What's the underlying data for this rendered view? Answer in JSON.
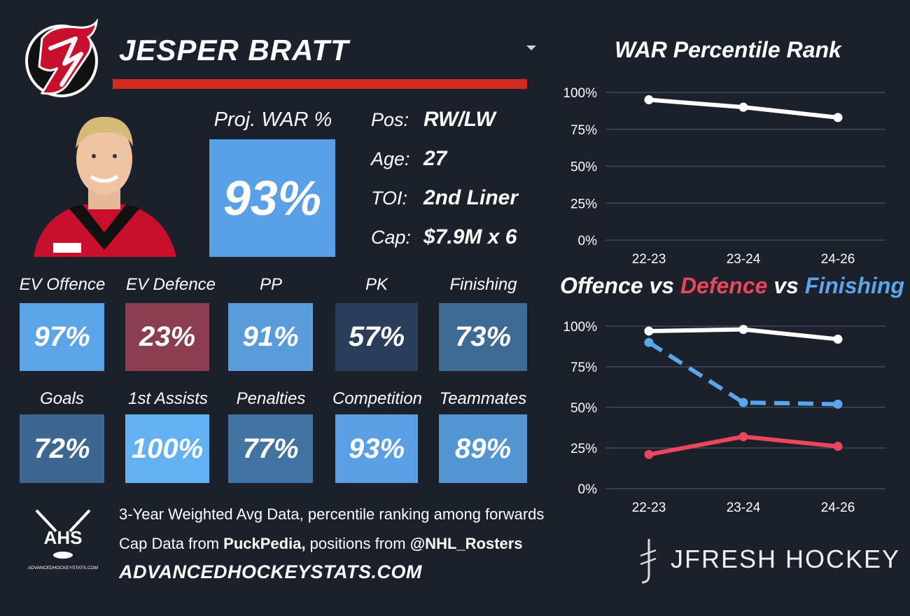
{
  "header": {
    "player_name": "JESPER BRATT",
    "team_logo_icon": "new-jersey-devils-logo-icon",
    "dropdown_icon": "caret-down-icon",
    "accent_color": "#d42b25"
  },
  "projection": {
    "label": "Proj. WAR %",
    "value": "93%",
    "color": "#5aa0e6"
  },
  "info": {
    "pos_label": "Pos:",
    "pos_value": "RW/LW",
    "age_label": "Age:",
    "age_value": "27",
    "toi_label": "TOI:",
    "toi_value": "2nd Liner",
    "cap_label": "Cap:",
    "cap_value": "$7.9M x 6"
  },
  "tiles": [
    {
      "label": "EV Offence",
      "value": "97%",
      "color": "#5aa4e7"
    },
    {
      "label": "EV Defence",
      "value": "23%",
      "color": "#8b3d52"
    },
    {
      "label": "PP",
      "value": "91%",
      "color": "#5a9bd9"
    },
    {
      "label": "PK",
      "value": "57%",
      "color": "#2a3e5a"
    },
    {
      "label": "Finishing",
      "value": "73%",
      "color": "#3f6a93"
    },
    {
      "label": "Goals",
      "value": "72%",
      "color": "#3d6790"
    },
    {
      "label": "1st Assists",
      "value": "100%",
      "color": "#63b1f3"
    },
    {
      "label": "Penalties",
      "value": "77%",
      "color": "#4272a0"
    },
    {
      "label": "Competition",
      "value": "93%",
      "color": "#5a9fe2"
    },
    {
      "label": "Teammates",
      "value": "89%",
      "color": "#5394d2"
    }
  ],
  "footer": {
    "line1": "3-Year Weighted Avg Data, percentile ranking among forwards",
    "line2_pre": "Cap Data from ",
    "line2_bold1": "PuckPedia,",
    "line2_mid": " positions from ",
    "line2_bold2": "@NHL_Rosters",
    "url": "ADVANCEDHOCKEYSTATS.COM",
    "ahs_logo_text": "AHS",
    "ahs_logo_subtext": "ADVANCEDHOCKEYSTATS.COM",
    "brand": "JFRESH HOCKEY"
  },
  "chart_data": [
    {
      "type": "line",
      "title": "WAR Percentile Rank",
      "categories": [
        "22-23",
        "23-24",
        "24-26"
      ],
      "yticks": [
        "100%",
        "75%",
        "50%",
        "25%",
        "0%"
      ],
      "ylim": [
        0,
        100
      ],
      "grid": true,
      "series": [
        {
          "values": [
            95,
            90,
            83
          ],
          "color": "#ffffff",
          "dashed": false
        }
      ]
    },
    {
      "type": "line",
      "title_parts": [
        {
          "text": "Offence",
          "color": "#ffffff"
        },
        {
          "text": " vs ",
          "color": "#ffffff"
        },
        {
          "text": "Defence",
          "color": "#e8475e"
        },
        {
          "text": " vs ",
          "color": "#ffffff"
        },
        {
          "text": "Finishing",
          "color": "#5aa6ec"
        }
      ],
      "categories": [
        "22-23",
        "23-24",
        "24-26"
      ],
      "yticks": [
        "100%",
        "75%",
        "50%",
        "25%",
        "0%"
      ],
      "ylim": [
        0,
        100
      ],
      "grid": true,
      "series": [
        {
          "name": "Offence",
          "values": [
            97,
            98,
            92
          ],
          "color": "#ffffff",
          "dashed": false
        },
        {
          "name": "Defence",
          "values": [
            21,
            32,
            26
          ],
          "color": "#e8475e",
          "dashed": false
        },
        {
          "name": "Finishing",
          "values": [
            90,
            53,
            52
          ],
          "color": "#5aa6ec",
          "dashed": true
        }
      ]
    }
  ]
}
